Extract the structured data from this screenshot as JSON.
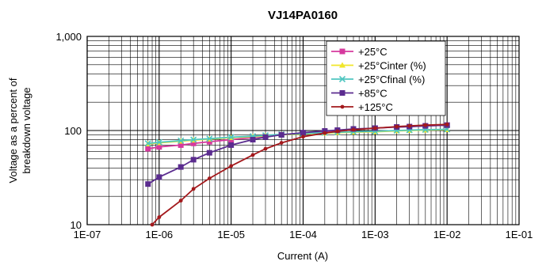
{
  "chart_data": {
    "type": "line",
    "title": "VJ14PA0160",
    "xlabel": "Current (A)",
    "ylabel": [
      "Voltage as a percent of",
      "breakdown voltage"
    ],
    "x_scale": "log",
    "y_scale": "log",
    "xlim": [
      1e-07,
      0.1
    ],
    "ylim": [
      10,
      1000
    ],
    "x_tick_labels": [
      "1E-07",
      "1E-06",
      "1E-05",
      "1E-04",
      "1E-03",
      "1E-02",
      "1E-01"
    ],
    "y_tick_labels": [
      "10",
      "100",
      "1,000"
    ],
    "grid": true,
    "legend_position": "top-right",
    "series": [
      {
        "name": "+25°C",
        "color": "#d6399e",
        "marker": "square",
        "x": [
          7e-07,
          1e-06,
          2e-06,
          3e-06,
          5e-06,
          1e-05,
          2e-05,
          3e-05,
          5e-05,
          0.0001,
          0.0002,
          0.0003,
          0.0005,
          0.001,
          0.002,
          0.003,
          0.005,
          0.01
        ],
        "y": [
          64,
          67,
          70,
          73,
          76,
          80,
          84,
          87,
          90,
          94,
          98,
          100,
          103,
          106,
          109,
          110,
          112,
          114
        ]
      },
      {
        "name": "+25°Cinter (%)",
        "color": "#f0e62a",
        "marker": "triangle",
        "x": [
          7e-07,
          1e-06,
          2e-06,
          3e-06,
          5e-06,
          1e-05,
          2e-05,
          3e-05,
          5e-05,
          0.0001,
          0.0002,
          0.0003,
          0.0005,
          0.001,
          0.002,
          0.003,
          0.005,
          0.01
        ],
        "y": [
          72,
          74,
          77,
          79,
          81,
          84,
          86,
          88,
          90,
          92,
          94,
          95,
          96,
          97,
          99,
          100,
          101,
          102
        ]
      },
      {
        "name": "+25°Cfinal (%)",
        "color": "#4fc6c0",
        "marker": "x",
        "x": [
          7e-07,
          1e-06,
          2e-06,
          3e-06,
          5e-06,
          1e-05,
          2e-05,
          3e-05,
          5e-05,
          0.0001,
          0.0002,
          0.0003,
          0.0005,
          0.001,
          0.002,
          0.003,
          0.005,
          0.01
        ],
        "y": [
          73,
          75,
          78,
          80,
          82,
          85,
          87,
          89,
          91,
          93,
          95,
          96,
          97,
          98,
          100,
          101,
          102,
          103
        ]
      },
      {
        "name": "+85°C",
        "color": "#5b2c8f",
        "marker": "square",
        "x": [
          7e-07,
          1e-06,
          2e-06,
          3e-06,
          5e-06,
          1e-05,
          2e-05,
          3e-05,
          5e-05,
          0.0001,
          0.0002,
          0.0003,
          0.0005,
          0.001,
          0.002,
          0.003,
          0.005,
          0.01
        ],
        "y": [
          27,
          32,
          41,
          49,
          58,
          70,
          80,
          85,
          90,
          95,
          99,
          101,
          104,
          106,
          109,
          110,
          112,
          114
        ]
      },
      {
        "name": "+125°C",
        "color": "#a3191c",
        "marker": "dot",
        "x": [
          8e-07,
          1e-06,
          2e-06,
          3e-06,
          5e-06,
          1e-05,
          2e-05,
          3e-05,
          5e-05,
          0.0001,
          0.0002,
          0.0003,
          0.0005,
          0.001,
          0.002,
          0.003,
          0.005,
          0.01
        ],
        "y": [
          10,
          12,
          18,
          24,
          31,
          42,
          55,
          64,
          74,
          86,
          94,
          98,
          102,
          106,
          110,
          112,
          114,
          116
        ]
      }
    ]
  }
}
